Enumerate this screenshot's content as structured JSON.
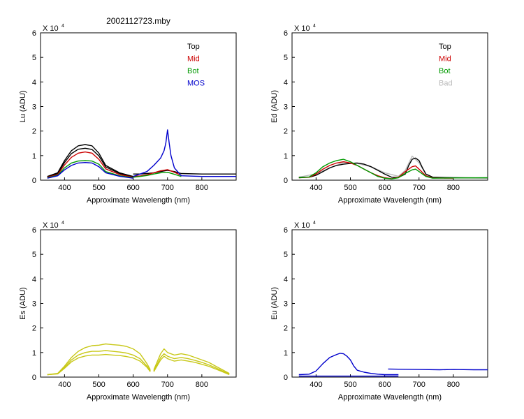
{
  "figure_title": "2002112723.mby",
  "chart_data": [
    {
      "type": "line",
      "ylabel": "Lu  (ADU)",
      "xlabel": "Approximate Wavelength (nm)",
      "exponent_base": "X 10",
      "exponent_power": "4",
      "xlim": [
        330,
        900
      ],
      "ylim": [
        0,
        60000
      ],
      "xticks": [
        400,
        500,
        600,
        700,
        800
      ],
      "yticks": [
        0,
        10000,
        20000,
        30000,
        40000,
        50000,
        60000
      ],
      "ytick_labels": [
        "0",
        "1",
        "2",
        "3",
        "4",
        "5",
        "6"
      ],
      "legend": [
        {
          "label": "Top",
          "color": "#000000"
        },
        {
          "label": "Mid",
          "color": "#cc0000"
        },
        {
          "label": "Bot",
          "color": "#009900"
        },
        {
          "label": "MOS",
          "color": "#0000cc"
        }
      ],
      "series": [
        {
          "name": "Top",
          "color": "#000000",
          "segments": [
            {
              "x": [
                350,
                380,
                400,
                420,
                440,
                460,
                480,
                500,
                520,
                560,
                600
              ],
              "y": [
                1500,
                3000,
                8000,
                12000,
                14000,
                14500,
                14000,
                11000,
                6000,
                3000,
                1500
              ]
            },
            {
              "x": [
                600,
                620,
                640,
                660,
                680,
                700,
                720,
                740,
                800,
                900
              ],
              "y": [
                2500,
                2500,
                2700,
                3000,
                3500,
                4000,
                3500,
                2700,
                2500,
                2500
              ]
            }
          ]
        },
        {
          "name": "Top",
          "color": "#000000",
          "segments": [
            {
              "x": [
                350,
                380,
                400,
                420,
                440,
                460,
                480,
                500,
                520,
                560,
                600
              ],
              "y": [
                1400,
                2700,
                7200,
                10800,
                12600,
                13000,
                12500,
                9900,
                5400,
                2700,
                1400
              ]
            }
          ]
        },
        {
          "name": "Mid",
          "color": "#cc0000",
          "segments": [
            {
              "x": [
                350,
                380,
                400,
                420,
                440,
                460,
                480,
                500,
                520,
                560,
                600
              ],
              "y": [
                1200,
                2300,
                6200,
                9300,
                11000,
                11500,
                11000,
                8500,
                4600,
                2300,
                1200
              ]
            },
            {
              "x": [
                600,
                620,
                640,
                660,
                680,
                700,
                720,
                740
              ],
              "y": [
                1500,
                1700,
                2200,
                3000,
                3800,
                4300,
                3200,
                2000
              ]
            }
          ]
        },
        {
          "name": "Bot",
          "color": "#009900",
          "segments": [
            {
              "x": [
                350,
                380,
                400,
                420,
                440,
                460,
                480,
                500,
                520,
                560,
                600
              ],
              "y": [
                1000,
                2000,
                5000,
                7000,
                7800,
                8000,
                7800,
                6500,
                3500,
                1800,
                1000
              ]
            },
            {
              "x": [
                600,
                620,
                640,
                660,
                680,
                700,
                720,
                740
              ],
              "y": [
                1200,
                1500,
                1900,
                2500,
                3000,
                3200,
                2400,
                1500
              ]
            }
          ]
        },
        {
          "name": "MOS",
          "color": "#0000cc",
          "segments": [
            {
              "x": [
                350,
                380,
                400,
                420,
                440,
                460,
                480,
                500,
                520,
                560,
                600
              ],
              "y": [
                800,
                1800,
                4200,
                6000,
                7000,
                7200,
                7000,
                5500,
                3000,
                1600,
                800
              ]
            },
            {
              "x": [
                600,
                640,
                660,
                670,
                680,
                690,
                695,
                700,
                705,
                710,
                720,
                740,
                800,
                900
              ],
              "y": [
                1500,
                3500,
                6000,
                7500,
                9000,
                12000,
                15000,
                20500,
                15000,
                10000,
                5000,
                1800,
                1500,
                1500
              ]
            }
          ]
        }
      ]
    },
    {
      "type": "line",
      "ylabel": "Ed  (ADU)",
      "xlabel": "Approximate Wavelength (nm)",
      "exponent_base": "X 10",
      "exponent_power": "4",
      "xlim": [
        330,
        900
      ],
      "ylim": [
        0,
        60000
      ],
      "xticks": [
        400,
        500,
        600,
        700,
        800
      ],
      "yticks": [
        0,
        10000,
        20000,
        30000,
        40000,
        50000,
        60000
      ],
      "ytick_labels": [
        "0",
        "1",
        "2",
        "3",
        "4",
        "5",
        "6"
      ],
      "legend": [
        {
          "label": "Top",
          "color": "#000000"
        },
        {
          "label": "Mid",
          "color": "#cc0000"
        },
        {
          "label": "Bot",
          "color": "#009900"
        },
        {
          "label": "Bad",
          "color": "#bbbbbb"
        }
      ],
      "series": [
        {
          "name": "Bad",
          "color": "#bbbbbb",
          "segments": [
            {
              "x": [
                350,
                400,
                440,
                480,
                520,
                560,
                600,
                640,
                660,
                680,
                700,
                720,
                740,
                800,
                900
              ],
              "y": [
                1200,
                2600,
                5000,
                7200,
                6800,
                5500,
                3000,
                1600,
                4000,
                9800,
                7000,
                2500,
                1200,
                1000,
                900
              ]
            }
          ]
        },
        {
          "name": "Top",
          "color": "#000000",
          "segments": [
            {
              "x": [
                350,
                380,
                400,
                420,
                440,
                460,
                480,
                500,
                520,
                540,
                560,
                580,
                600,
                620,
                640,
                660,
                670,
                680,
                690,
                700,
                710,
                720,
                740,
                760,
                800,
                900
              ],
              "y": [
                1200,
                1200,
                2000,
                3500,
                5000,
                6000,
                6500,
                6800,
                7000,
                6500,
                5500,
                4000,
                2500,
                1200,
                1100,
                2500,
                6000,
                8500,
                9000,
                8000,
                5000,
                2500,
                1200,
                1100,
                1000,
                900
              ]
            }
          ]
        },
        {
          "name": "Mid",
          "color": "#cc0000",
          "segments": [
            {
              "x": [
                350,
                380,
                400,
                420,
                440,
                460,
                480,
                500,
                520,
                540,
                560,
                580,
                600,
                620,
                640,
                660,
                680,
                690,
                700,
                720,
                740,
                800
              ],
              "y": [
                1000,
                1200,
                2500,
                4500,
                6000,
                7000,
                7500,
                7000,
                6000,
                4500,
                3000,
                1800,
                1000,
                600,
                1200,
                3500,
                5500,
                5800,
                4500,
                1800,
                900,
                800
              ]
            }
          ]
        },
        {
          "name": "Bot",
          "color": "#009900",
          "segments": [
            {
              "x": [
                350,
                380,
                400,
                420,
                440,
                460,
                480,
                500,
                520,
                540,
                560,
                580,
                600,
                620,
                640,
                660,
                680,
                690,
                700,
                720,
                740,
                800,
                900
              ],
              "y": [
                1000,
                1300,
                3000,
                5500,
                7000,
                8000,
                8500,
                7500,
                6000,
                4500,
                3000,
                1500,
                800,
                500,
                1000,
                2800,
                4200,
                4500,
                3500,
                1500,
                800,
                900,
                1000
              ]
            }
          ]
        }
      ]
    },
    {
      "type": "line",
      "ylabel": "Es  (ADU)",
      "xlabel": "Approximate Wavelength (nm)",
      "exponent_base": "X 10",
      "exponent_power": "4",
      "xlim": [
        330,
        900
      ],
      "ylim": [
        0,
        60000
      ],
      "xticks": [
        400,
        500,
        600,
        700,
        800
      ],
      "yticks": [
        0,
        10000,
        20000,
        30000,
        40000,
        50000,
        60000
      ],
      "ytick_labels": [
        "0",
        "1",
        "2",
        "3",
        "4",
        "5",
        "6"
      ],
      "legend": [],
      "series": [
        {
          "name": "Es",
          "color": "#c8c818",
          "segments": [
            {
              "x": [
                350,
                380,
                400,
                420,
                440,
                460,
                480,
                500,
                520,
                540,
                560,
                580,
                600,
                620,
                640,
                650
              ],
              "y": [
                1000,
                1500,
                4500,
                8000,
                10500,
                12000,
                12800,
                13000,
                13500,
                13200,
                13000,
                12500,
                11500,
                9500,
                5500,
                3000
              ]
            },
            {
              "x": [
                660,
                680,
                690,
                700,
                720,
                740,
                760,
                780,
                800,
                820,
                840,
                860,
                880
              ],
              "y": [
                3000,
                9500,
                11500,
                10000,
                9000,
                9500,
                9000,
                8000,
                7000,
                6000,
                4500,
                3000,
                1500
              ]
            }
          ]
        },
        {
          "name": "Es",
          "color": "#c8c818",
          "segments": [
            {
              "x": [
                350,
                380,
                400,
                420,
                440,
                460,
                480,
                500,
                520,
                540,
                560,
                580,
                600,
                620,
                640,
                650
              ],
              "y": [
                1000,
                1400,
                4000,
                7000,
                9000,
                10000,
                10500,
                10500,
                10800,
                10500,
                10200,
                9800,
                9000,
                7500,
                4500,
                2500
              ]
            },
            {
              "x": [
                660,
                680,
                690,
                700,
                720,
                740,
                760,
                780,
                800,
                820,
                840,
                860,
                880
              ],
              "y": [
                2500,
                8000,
                9500,
                8500,
                7500,
                8000,
                7500,
                6800,
                6000,
                5000,
                3800,
                2500,
                1200
              ]
            }
          ]
        },
        {
          "name": "Es",
          "color": "#c8c818",
          "segments": [
            {
              "x": [
                350,
                380,
                400,
                420,
                440,
                460,
                480,
                500,
                520,
                540,
                560,
                580,
                600,
                620,
                640,
                650
              ],
              "y": [
                1000,
                1300,
                3600,
                6200,
                7800,
                8600,
                9000,
                9000,
                9200,
                9000,
                8800,
                8400,
                7800,
                6500,
                4000,
                2200
              ]
            },
            {
              "x": [
                660,
                680,
                690,
                700,
                720,
                740,
                760,
                780,
                800,
                820,
                840,
                860,
                880
              ],
              "y": [
                2200,
                7000,
                8500,
                7500,
                6500,
                7000,
                6500,
                6000,
                5200,
                4400,
                3300,
                2200,
                1000
              ]
            }
          ]
        }
      ]
    },
    {
      "type": "line",
      "ylabel": "Eu  (ADU)",
      "xlabel": "Approximate Wavelength (nm)",
      "exponent_base": "X 10",
      "exponent_power": "4",
      "xlim": [
        330,
        900
      ],
      "ylim": [
        0,
        60000
      ],
      "xticks": [
        400,
        500,
        600,
        700,
        800
      ],
      "yticks": [
        0,
        10000,
        20000,
        30000,
        40000,
        50000,
        60000
      ],
      "ytick_labels": [
        "0",
        "1",
        "2",
        "3",
        "4",
        "5",
        "6"
      ],
      "legend": [],
      "series": [
        {
          "name": "Eu",
          "color": "#0000cc",
          "segments": [
            {
              "x": [
                350,
                380,
                400,
                420,
                440,
                460,
                470,
                480,
                490,
                500,
                510,
                520,
                540,
                560,
                580,
                600,
                620,
                640
              ],
              "y": [
                1000,
                1200,
                2500,
                5500,
                8000,
                9200,
                9700,
                9500,
                8500,
                7000,
                4500,
                2800,
                2000,
                1500,
                1200,
                1000,
                1000,
                1000
              ]
            },
            {
              "x": [
                350,
                400,
                500,
                600,
                640
              ],
              "y": [
                400,
                400,
                400,
                400,
                400
              ]
            },
            {
              "x": [
                610,
                640,
                700,
                760,
                800,
                860,
                900
              ],
              "y": [
                3300,
                3200,
                3100,
                3000,
                3100,
                3000,
                3000
              ]
            }
          ]
        }
      ]
    }
  ]
}
